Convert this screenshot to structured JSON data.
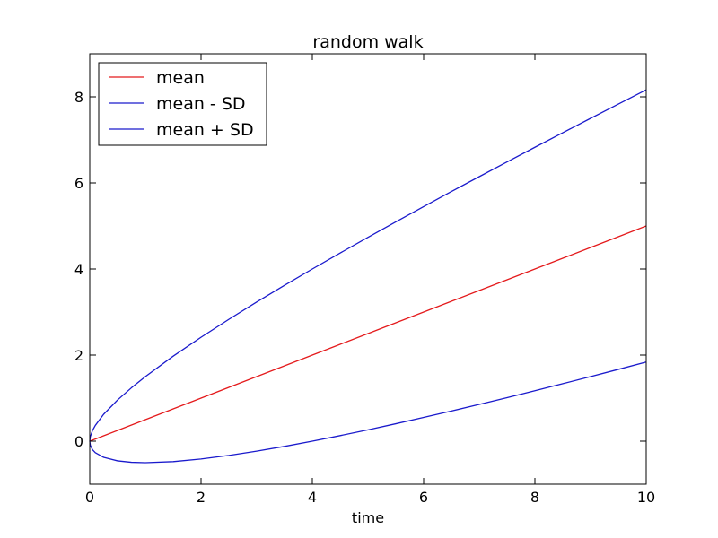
{
  "chart_data": {
    "type": "line",
    "title": "random walk",
    "xlabel": "time",
    "ylabel": "",
    "xlim": [
      0,
      10
    ],
    "ylim": [
      -1,
      9
    ],
    "xticks": [
      0,
      2,
      4,
      6,
      8,
      10
    ],
    "yticks": [
      0,
      2,
      4,
      6,
      8
    ],
    "grid": false,
    "legend_position": "top-left",
    "x": [
      0,
      0.01,
      0.05,
      0.1,
      0.25,
      0.5,
      0.75,
      1,
      1.5,
      2,
      2.5,
      3,
      3.5,
      4,
      4.5,
      5,
      5.5,
      6,
      6.5,
      7,
      7.5,
      8,
      8.5,
      9,
      9.5,
      10
    ],
    "series": [
      {
        "name": "mean",
        "color": "#e41a1c",
        "values": [
          0,
          0.005,
          0.025,
          0.05,
          0.125,
          0.25,
          0.375,
          0.5,
          0.75,
          1.0,
          1.25,
          1.5,
          1.75,
          2.0,
          2.25,
          2.5,
          2.75,
          3.0,
          3.25,
          3.5,
          3.75,
          4.0,
          4.25,
          4.5,
          4.75,
          5.0
        ]
      },
      {
        "name": "mean - SD",
        "color": "#1a1acc",
        "values": [
          0,
          -0.095,
          -0.199,
          -0.266,
          -0.375,
          -0.457,
          -0.491,
          -0.5,
          -0.475,
          -0.414,
          -0.331,
          -0.232,
          -0.121,
          0.0,
          0.129,
          0.264,
          0.405,
          0.551,
          0.7,
          0.854,
          1.011,
          1.172,
          1.335,
          1.5,
          1.668,
          1.838
        ]
      },
      {
        "name": "mean + SD",
        "color": "#1a1acc",
        "values": [
          0,
          0.105,
          0.249,
          0.366,
          0.625,
          0.957,
          1.241,
          1.5,
          1.975,
          2.414,
          2.831,
          3.232,
          3.621,
          4.0,
          4.371,
          4.736,
          5.095,
          5.449,
          5.8,
          6.146,
          6.489,
          6.828,
          7.165,
          7.5,
          7.832,
          8.162
        ]
      }
    ]
  }
}
